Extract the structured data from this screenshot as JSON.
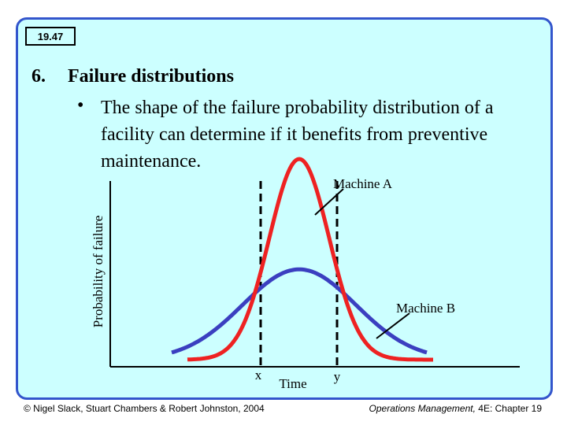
{
  "slide": {
    "badge": "19.47",
    "heading_number": "6.",
    "heading": "Failure distributions",
    "bullet": "The shape of the failure probability distribution of a facility can determine if it benefits from preventive maintenance."
  },
  "footer": {
    "left": "© Nigel Slack, Stuart Chambers & Robert Johnston, 2004",
    "right_prefix": "Operations Management, ",
    "right_suffix": "4E: Chapter 19"
  },
  "colors": {
    "slide_bg": "#ccffff",
    "slide_border": "#3355cc",
    "machine_a": "#ee2222",
    "machine_b": "#3b3fc0"
  },
  "chart_data": {
    "type": "line",
    "xlabel": "Time",
    "ylabel": "Probability of failure",
    "markers": [
      "x",
      "y"
    ],
    "series": [
      {
        "name": "Machine A",
        "shape": "narrow bell curve",
        "relative_peak": 1.0
      },
      {
        "name": "Machine B",
        "shape": "wide bell curve",
        "relative_peak": 0.45
      }
    ]
  }
}
